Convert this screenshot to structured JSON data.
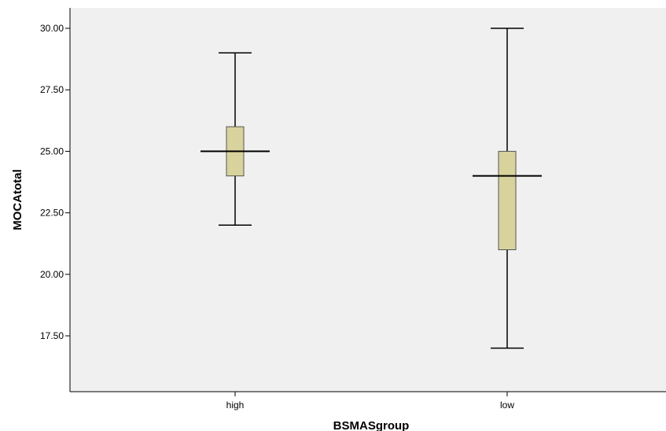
{
  "chart_data": {
    "type": "boxplot",
    "xlabel": "BSMASgroup",
    "ylabel": "MOCAtotal",
    "ylim": [
      14.5,
      31.0
    ],
    "y_ticks": [
      17.5,
      20.0,
      22.5,
      25.0,
      27.5,
      30.0
    ],
    "y_tick_labels": [
      "17.50",
      "20.00",
      "22.50",
      "25.00",
      "27.50",
      "30.00"
    ],
    "categories": [
      "high",
      "low"
    ],
    "boxes": [
      {
        "category": "high",
        "min": 22.0,
        "q1": 24.0,
        "median": 25.0,
        "q3": 26.0,
        "max": 29.0
      },
      {
        "category": "low",
        "min": 17.0,
        "q1": 21.0,
        "median": 24.0,
        "q3": 25.0,
        "max": 30.0
      }
    ],
    "grid": false,
    "colors": {
      "box_fill": "#d8d39c",
      "plot_background": "#f0f0f0",
      "line": "#000000"
    }
  }
}
